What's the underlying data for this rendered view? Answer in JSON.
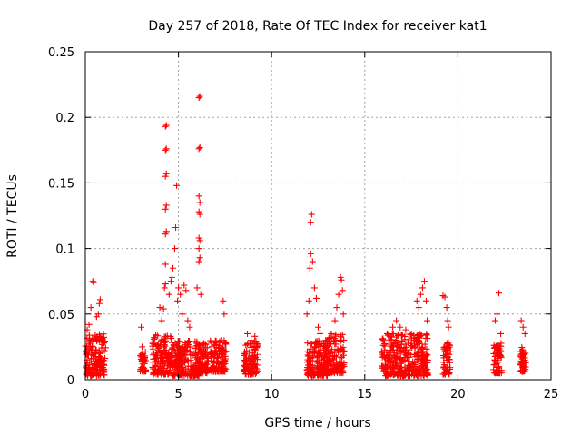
{
  "chart_data": {
    "type": "scatter",
    "title": "Day 257 of 2018, Rate Of TEC Index for receiver kat1",
    "xlabel": "GPS time / hours",
    "ylabel": "ROTI / TECUs",
    "xlim": [
      0,
      25
    ],
    "ylim": [
      0,
      0.25
    ],
    "xticks": [
      0,
      5,
      10,
      15,
      20,
      25
    ],
    "xtick_labels": [
      "0",
      "5",
      "10",
      "15",
      "20",
      "25"
    ],
    "yticks": [
      0,
      0.05,
      0.1,
      0.15,
      0.2,
      0.25
    ],
    "ytick_labels": [
      "0",
      "0.05",
      "0.1",
      "0.15",
      "0.2",
      "0.25"
    ],
    "grid": true,
    "marker": "+",
    "marker_color": "#ff0000",
    "series": [
      {
        "name": "ROTI",
        "points": [
          [
            0.0,
            0.044
          ],
          [
            0.1,
            0.038
          ],
          [
            0.2,
            0.042
          ],
          [
            0.3,
            0.055
          ],
          [
            0.4,
            0.075
          ],
          [
            0.45,
            0.074
          ],
          [
            0.6,
            0.048
          ],
          [
            0.7,
            0.05
          ],
          [
            0.75,
            0.058
          ],
          [
            0.8,
            0.061
          ],
          [
            0.9,
            0.03
          ],
          [
            1.0,
            0.028
          ],
          [
            3.0,
            0.04
          ],
          [
            3.05,
            0.025
          ],
          [
            3.1,
            0.02
          ],
          [
            3.15,
            0.015
          ],
          [
            4.0,
            0.055
          ],
          [
            4.1,
            0.045
          ],
          [
            4.2,
            0.054
          ],
          [
            4.25,
            0.07
          ],
          [
            4.3,
            0.073
          ],
          [
            4.3,
            0.088
          ],
          [
            4.3,
            0.111
          ],
          [
            4.35,
            0.113
          ],
          [
            4.3,
            0.13
          ],
          [
            4.35,
            0.133
          ],
          [
            4.3,
            0.155
          ],
          [
            4.35,
            0.157
          ],
          [
            4.3,
            0.175
          ],
          [
            4.35,
            0.176
          ],
          [
            4.3,
            0.193
          ],
          [
            4.35,
            0.194
          ],
          [
            4.5,
            0.065
          ],
          [
            4.6,
            0.075
          ],
          [
            4.65,
            0.078
          ],
          [
            4.7,
            0.085
          ],
          [
            4.8,
            0.1
          ],
          [
            4.85,
            0.116
          ],
          [
            4.9,
            0.148
          ],
          [
            4.95,
            0.06
          ],
          [
            5.0,
            0.07
          ],
          [
            5.1,
            0.065
          ],
          [
            5.2,
            0.05
          ],
          [
            5.3,
            0.072
          ],
          [
            5.4,
            0.068
          ],
          [
            5.5,
            0.045
          ],
          [
            5.6,
            0.04
          ],
          [
            6.1,
            0.215
          ],
          [
            6.15,
            0.216
          ],
          [
            6.1,
            0.176
          ],
          [
            6.15,
            0.177
          ],
          [
            6.1,
            0.14
          ],
          [
            6.15,
            0.135
          ],
          [
            6.1,
            0.128
          ],
          [
            6.15,
            0.126
          ],
          [
            6.1,
            0.108
          ],
          [
            6.15,
            0.106
          ],
          [
            6.1,
            0.1
          ],
          [
            6.15,
            0.093
          ],
          [
            6.1,
            0.09
          ],
          [
            6.0,
            0.07
          ],
          [
            6.2,
            0.065
          ],
          [
            7.4,
            0.06
          ],
          [
            7.45,
            0.05
          ],
          [
            7.3,
            0.03
          ],
          [
            7.5,
            0.028
          ],
          [
            8.7,
            0.035
          ],
          [
            8.9,
            0.03
          ],
          [
            9.1,
            0.033
          ],
          [
            9.2,
            0.025
          ],
          [
            11.9,
            0.05
          ],
          [
            12.0,
            0.06
          ],
          [
            12.05,
            0.085
          ],
          [
            12.1,
            0.096
          ],
          [
            12.1,
            0.12
          ],
          [
            12.15,
            0.126
          ],
          [
            12.2,
            0.09
          ],
          [
            12.3,
            0.07
          ],
          [
            12.4,
            0.062
          ],
          [
            12.5,
            0.04
          ],
          [
            12.6,
            0.035
          ],
          [
            12.9,
            0.03
          ],
          [
            13.2,
            0.035
          ],
          [
            13.4,
            0.045
          ],
          [
            13.5,
            0.055
          ],
          [
            13.6,
            0.065
          ],
          [
            13.7,
            0.078
          ],
          [
            13.75,
            0.076
          ],
          [
            13.8,
            0.068
          ],
          [
            13.85,
            0.05
          ],
          [
            16.0,
            0.03
          ],
          [
            16.2,
            0.035
          ],
          [
            16.5,
            0.04
          ],
          [
            16.7,
            0.045
          ],
          [
            16.9,
            0.04
          ],
          [
            17.2,
            0.038
          ],
          [
            17.5,
            0.035
          ],
          [
            17.8,
            0.06
          ],
          [
            17.9,
            0.055
          ],
          [
            18.0,
            0.065
          ],
          [
            18.1,
            0.07
          ],
          [
            18.2,
            0.075
          ],
          [
            18.3,
            0.06
          ],
          [
            18.35,
            0.045
          ],
          [
            19.2,
            0.064
          ],
          [
            19.3,
            0.063
          ],
          [
            19.4,
            0.055
          ],
          [
            19.45,
            0.045
          ],
          [
            19.5,
            0.04
          ],
          [
            22.0,
            0.045
          ],
          [
            22.1,
            0.05
          ],
          [
            22.2,
            0.066
          ],
          [
            22.3,
            0.035
          ],
          [
            23.4,
            0.045
          ],
          [
            23.5,
            0.04
          ],
          [
            23.6,
            0.035
          ],
          [
            23.55,
            0.02
          ]
        ],
        "bands": [
          {
            "x": [
              0.0,
              1.1
            ],
            "y": [
              0.003,
              0.035
            ]
          },
          {
            "x": [
              2.95,
              3.25
            ],
            "y": [
              0.006,
              0.022
            ]
          },
          {
            "x": [
              3.6,
              4.7
            ],
            "y": [
              0.004,
              0.035
            ]
          },
          {
            "x": [
              4.6,
              6.1
            ],
            "y": [
              0.003,
              0.03
            ]
          },
          {
            "x": [
              6.0,
              6.6
            ],
            "y": [
              0.005,
              0.028
            ]
          },
          {
            "x": [
              6.7,
              7.55
            ],
            "y": [
              0.006,
              0.03
            ]
          },
          {
            "x": [
              8.5,
              9.25
            ],
            "y": [
              0.004,
              0.03
            ]
          },
          {
            "x": [
              11.9,
              13.0
            ],
            "y": [
              0.003,
              0.03
            ]
          },
          {
            "x": [
              12.9,
              13.9
            ],
            "y": [
              0.005,
              0.035
            ]
          },
          {
            "x": [
              15.9,
              17.0
            ],
            "y": [
              0.003,
              0.035
            ]
          },
          {
            "x": [
              16.9,
              18.4
            ],
            "y": [
              0.003,
              0.035
            ]
          },
          {
            "x": [
              19.2,
              19.6
            ],
            "y": [
              0.004,
              0.03
            ]
          },
          {
            "x": [
              21.9,
              22.35
            ],
            "y": [
              0.005,
              0.028
            ]
          },
          {
            "x": [
              23.35,
              23.65
            ],
            "y": [
              0.006,
              0.025
            ]
          }
        ]
      }
    ]
  }
}
